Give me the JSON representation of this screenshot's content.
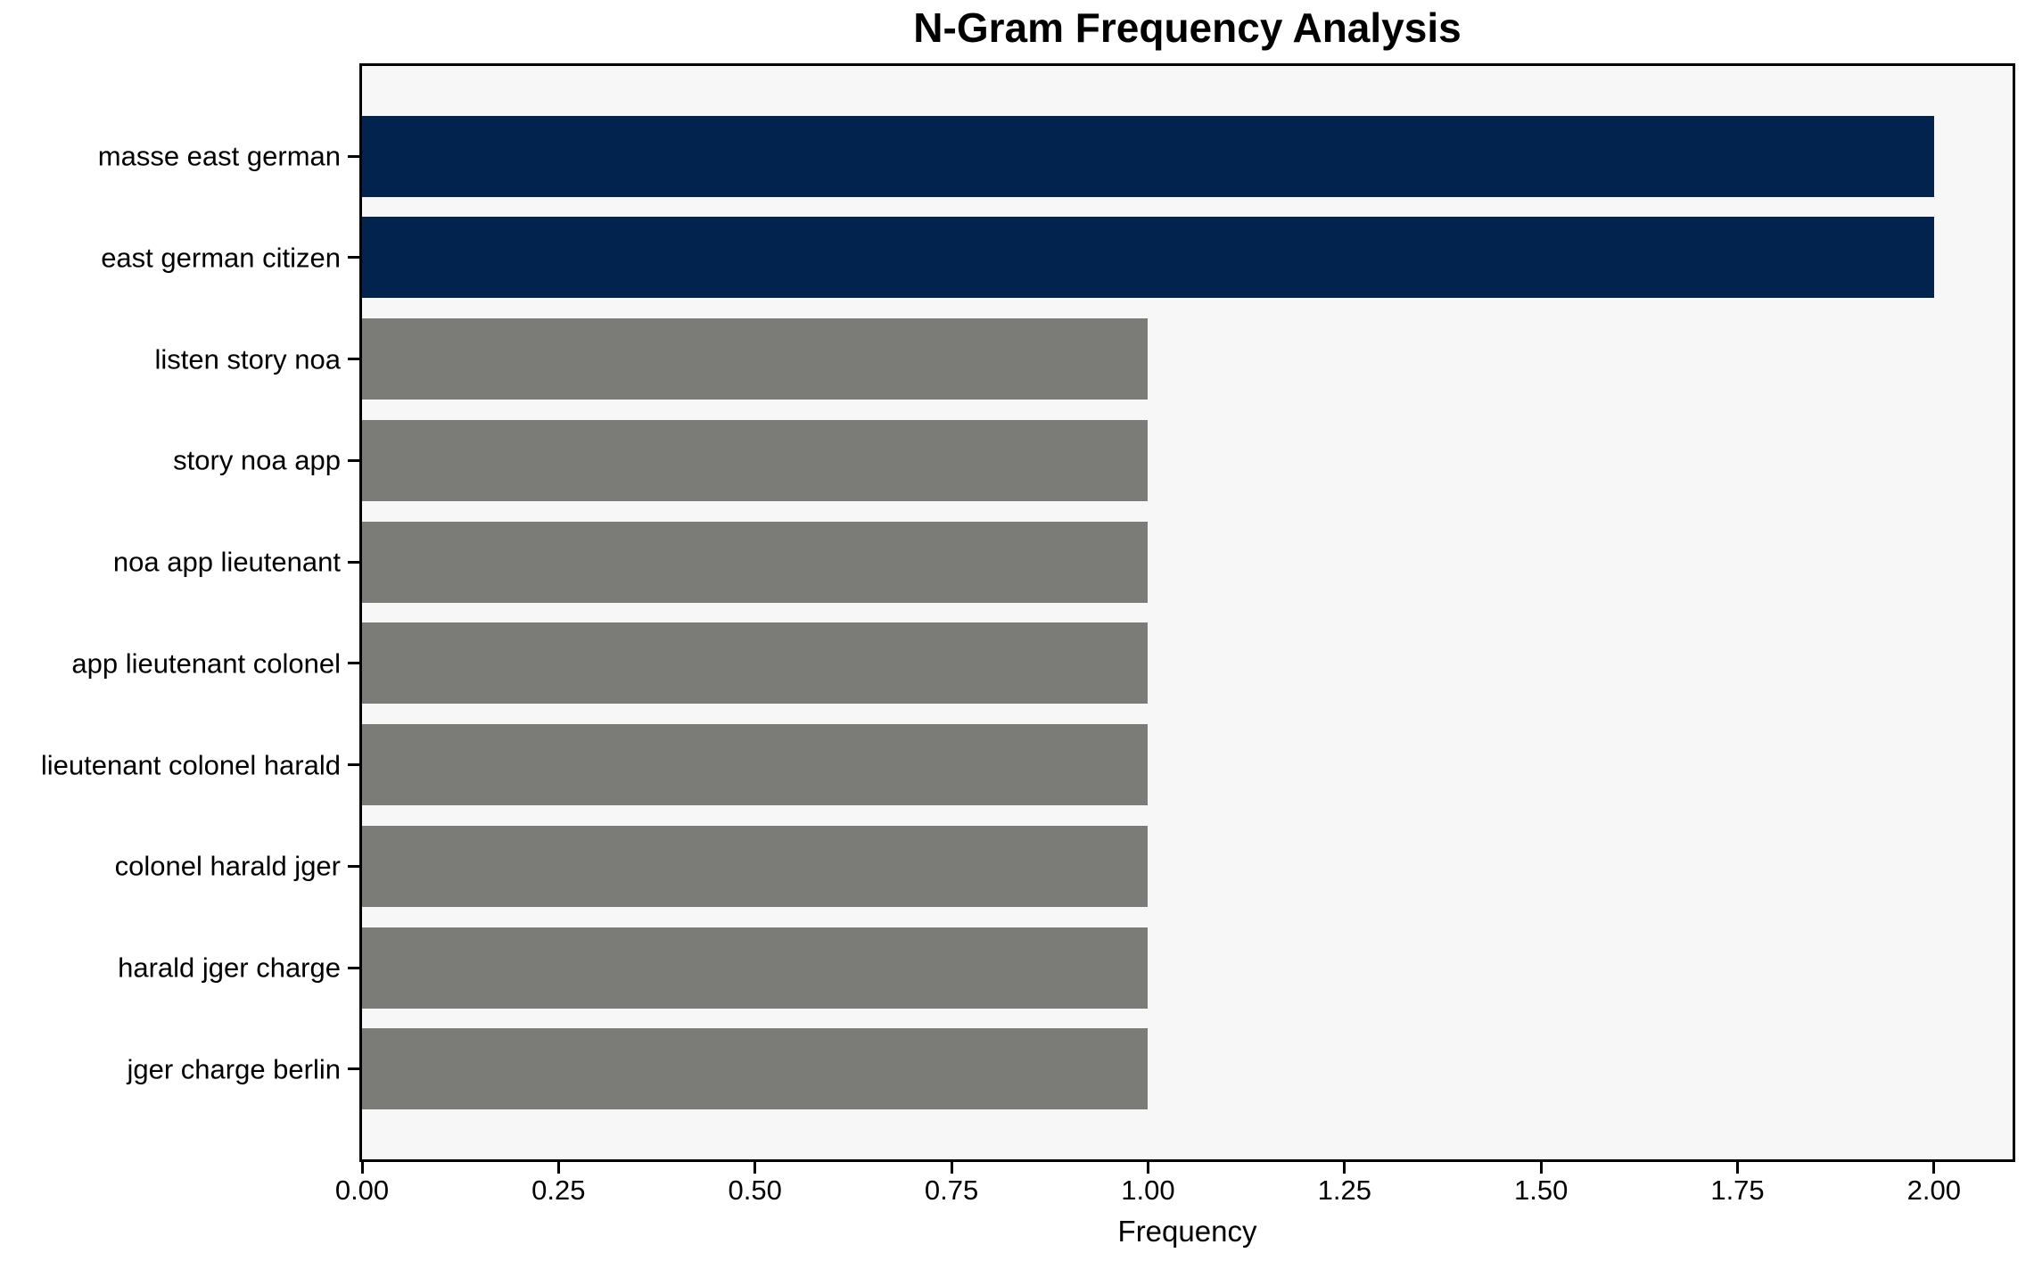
{
  "chart_data": {
    "type": "bar",
    "orientation": "horizontal",
    "title": "N-Gram Frequency Analysis",
    "xlabel": "Frequency",
    "ylabel": "",
    "categories": [
      "masse east german",
      "east german citizen",
      "listen story noa",
      "story noa app",
      "noa app lieutenant",
      "app lieutenant colonel",
      "lieutenant colonel harald",
      "colonel harald jger",
      "harald jger charge",
      "jger charge berlin"
    ],
    "values": [
      2,
      2,
      1,
      1,
      1,
      1,
      1,
      1,
      1,
      1
    ],
    "bar_colors": [
      "#02234d",
      "#02234d",
      "#7b7b78",
      "#7b7b78",
      "#7b7b78",
      "#7b7b78",
      "#7b7b78",
      "#7b7b78",
      "#7b7b78",
      "#7b7b78"
    ],
    "xlim": [
      0,
      2.1
    ],
    "xticks": [
      0,
      0.25,
      0.5,
      0.75,
      1.0,
      1.25,
      1.5,
      1.75,
      2.0
    ],
    "xtick_labels": [
      "0.00",
      "0.25",
      "0.50",
      "0.75",
      "1.00",
      "1.25",
      "1.50",
      "1.75",
      "2.00"
    ],
    "grid": false,
    "legend": null,
    "colors": {
      "highlight_bar": "#02234d",
      "default_bar": "#7b7b78",
      "plot_background": "#f7f7f7",
      "figure_background": "#ffffff",
      "spine": "#000000",
      "text": "#000000"
    }
  }
}
